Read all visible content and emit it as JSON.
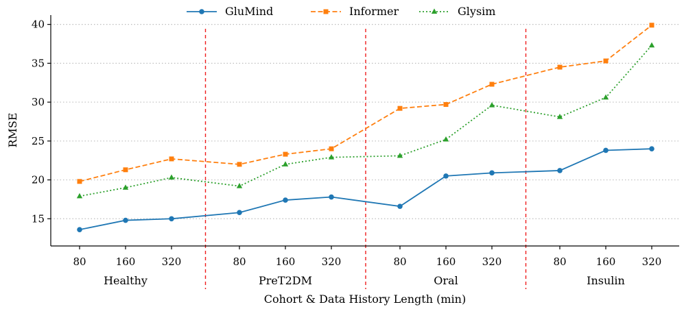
{
  "chart_data": {
    "type": "line",
    "title": "",
    "xlabel": "Cohort & Data History Length (min)",
    "ylabel": "RMSE",
    "ylim": [
      11.5,
      41.2
    ],
    "yticks": [
      15,
      20,
      25,
      30,
      35,
      40
    ],
    "grid": "horizontal dotted",
    "legend_position": "top",
    "categories": [
      "80",
      "160",
      "320",
      "80",
      "160",
      "320",
      "80",
      "160",
      "320",
      "80",
      "160",
      "320"
    ],
    "groups": [
      {
        "name": "Healthy",
        "count": 3
      },
      {
        "name": "PreT2DM",
        "count": 3
      },
      {
        "name": "Oral",
        "count": 3
      },
      {
        "name": "Insulin",
        "count": 3
      }
    ],
    "series": [
      {
        "name": "GluMind",
        "color": "#1f77b4",
        "marker": "circle",
        "linestyle": "solid",
        "values": [
          13.6,
          14.8,
          15.0,
          15.8,
          17.4,
          17.8,
          16.6,
          20.5,
          20.9,
          21.2,
          23.8,
          24.0
        ]
      },
      {
        "name": "Informer",
        "color": "#ff7f0e",
        "marker": "square",
        "linestyle": "dashed",
        "values": [
          19.8,
          21.3,
          22.7,
          22.0,
          23.3,
          24.0,
          29.2,
          29.7,
          32.3,
          34.5,
          35.3,
          39.9
        ]
      },
      {
        "name": "Glysim",
        "color": "#2ca02c",
        "marker": "triangle",
        "linestyle": "dotted",
        "values": [
          17.9,
          19.0,
          20.3,
          19.2,
          22.0,
          22.9,
          23.1,
          25.2,
          29.6,
          28.1,
          30.6,
          37.3
        ]
      }
    ],
    "separator_color": "#ee1c1c"
  }
}
